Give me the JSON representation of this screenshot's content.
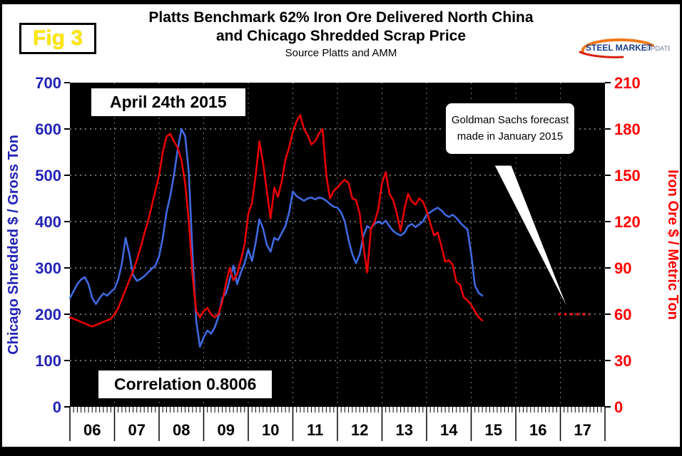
{
  "figure": {
    "fig_label": "Fig 3",
    "title_line1": "Platts Benchmark 62% Iron Ore Delivered North China",
    "title_line2": "and Chicago Shredded Scrap Price",
    "subtitle": "Source Platts and AMM",
    "logo": {
      "primary": "STEEL MARKET",
      "secondary": "UPDATE"
    }
  },
  "annotations": {
    "date_box": "April 24th 2015",
    "correlation_box": "Correlation 0.8006",
    "callout": "Goldman Sachs forecast made in January 2015"
  },
  "chart_data": {
    "type": "line",
    "title": "Platts Benchmark 62% Iron Ore Delivered North China and Chicago Shredded Scrap Price",
    "source": "Source Platts and AMM",
    "plot_background": "#000000",
    "xlim": [
      2006,
      2018
    ],
    "x_axis": {
      "labels": [
        "06",
        "07",
        "08",
        "09",
        "10",
        "11",
        "12",
        "13",
        "14",
        "15",
        "16",
        "17"
      ],
      "minor_ticks_per_year": 12
    },
    "left_axis": {
      "label": "Chicago Shredded $ / Gross Ton",
      "min": 0,
      "max": 700,
      "step": 100,
      "color": "#2323b6"
    },
    "right_axis": {
      "label": "Iron Ore $ / Metric Ton",
      "min": 0,
      "max": 210,
      "step": 30,
      "color": "#ff0000"
    },
    "grid": {
      "horizontal": true,
      "vertical": true
    },
    "series": [
      {
        "name": "Chicago Shredded Scrap Price ($/Gross Ton)",
        "axis": "left",
        "color": "#4169e1",
        "width": 2.6,
        "start": 2006,
        "points_per_year": 12,
        "values": [
          235,
          250,
          265,
          275,
          280,
          265,
          235,
          222,
          235,
          245,
          240,
          248,
          255,
          275,
          310,
          365,
          330,
          285,
          272,
          276,
          282,
          290,
          298,
          305,
          325,
          365,
          420,
          455,
          500,
          555,
          600,
          585,
          505,
          330,
          185,
          130,
          150,
          165,
          158,
          172,
          195,
          235,
          245,
          275,
          305,
          265,
          290,
          310,
          340,
          315,
          355,
          405,
          385,
          350,
          335,
          365,
          360,
          375,
          390,
          420,
          465,
          455,
          450,
          445,
          450,
          452,
          448,
          452,
          450,
          445,
          438,
          432,
          430,
          420,
          400,
          360,
          330,
          310,
          330,
          370,
          390,
          385,
          395,
          400,
          395,
          402,
          390,
          380,
          374,
          370,
          376,
          390,
          395,
          388,
          394,
          400,
          415,
          420,
          426,
          430,
          424,
          415,
          410,
          415,
          408,
          398,
          390,
          383,
          330,
          262,
          246,
          240
        ]
      },
      {
        "name": "Platts 62% Iron Ore Delivered North China ($/Metric Ton)",
        "axis": "right",
        "color": "#e80000",
        "width": 2.6,
        "start": 2006,
        "points_per_year": 12,
        "values": [
          58,
          57,
          56,
          55,
          54,
          53,
          52,
          53,
          54,
          55,
          56,
          57,
          60,
          64,
          70,
          76,
          82,
          88,
          95,
          103,
          112,
          120,
          130,
          140,
          150,
          165,
          175,
          177,
          172,
          168,
          160,
          145,
          120,
          85,
          62,
          58,
          62,
          64,
          60,
          58,
          60,
          68,
          80,
          90,
          82,
          86,
          95,
          105,
          125,
          132,
          150,
          172,
          158,
          140,
          122,
          142,
          136,
          146,
          160,
          168,
          178,
          185,
          189,
          180,
          176,
          170,
          172,
          177,
          180,
          150,
          135,
          140,
          142,
          145,
          147,
          145,
          135,
          134,
          125,
          104,
          87,
          115,
          120,
          128,
          145,
          152,
          138,
          134,
          125,
          114,
          128,
          138,
          133,
          131,
          135,
          133,
          127,
          119,
          111,
          113,
          104,
          94,
          95,
          92,
          81,
          79,
          71,
          69,
          66,
          62,
          58,
          56
        ]
      }
    ],
    "forecast": {
      "label": "Goldman Sachs forecast made in January 2015",
      "axis": "right",
      "value": 60,
      "x_start": 2016.95,
      "x_end": 2017.65,
      "color": "#ff1010",
      "style": "dotted"
    }
  }
}
